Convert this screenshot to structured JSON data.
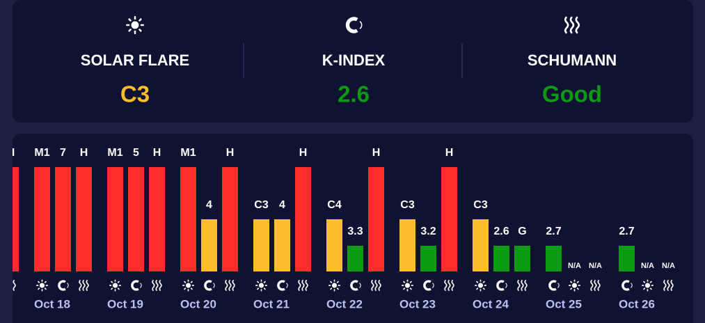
{
  "status": [
    {
      "title": "SOLAR FLARE",
      "value": "C3",
      "color": "#fbbd2b"
    },
    {
      "title": "K-INDEX",
      "value": "2.6",
      "color": "#0b9a12"
    },
    {
      "title": "SCHUMANN",
      "value": "Good",
      "color": "#0b9a12"
    }
  ],
  "palette": [
    "#0b9a12",
    "#fbbd2b",
    "#ff2d2d"
  ],
  "days": [
    {
      "bars": [
        {
          "label": "H",
          "color": "#ff2d2d"
        }
      ]
    },
    {
      "date": "Oct 18",
      "bars": [
        {
          "label": "M1",
          "color": "#ff2d2d"
        },
        {
          "label": "7",
          "color": "#ff2d2d"
        },
        {
          "label": "H",
          "color": "#ff2d2d"
        }
      ]
    },
    {
      "date": "Oct 19",
      "bars": [
        {
          "label": "M1",
          "color": "#ff2d2d"
        },
        {
          "label": "5",
          "color": "#ff2d2d"
        },
        {
          "label": "H",
          "color": "#ff2d2d"
        }
      ]
    },
    {
      "date": "Oct 20",
      "bars": [
        {
          "label": "M1",
          "color": "#ff2d2d"
        },
        {
          "label": "4",
          "color": "#fbbd2b"
        },
        {
          "label": "H",
          "color": "#ff2d2d"
        }
      ]
    },
    {
      "date": "Oct 21",
      "bars": [
        {
          "label": "C3",
          "color": "#fbbd2b"
        },
        {
          "label": "4",
          "color": "#fbbd2b"
        },
        {
          "label": "H",
          "color": "#ff2d2d"
        }
      ]
    },
    {
      "date": "Oct 22",
      "bars": [
        {
          "label": "C4",
          "color": "#fbbd2b"
        },
        {
          "label": "3.3",
          "color": "#0b9a12"
        },
        {
          "label": "H",
          "color": "#ff2d2d"
        }
      ]
    },
    {
      "date": "Oct 23",
      "bars": [
        {
          "label": "C3",
          "color": "#fbbd2b"
        },
        {
          "label": "3.2",
          "color": "#0b9a12"
        },
        {
          "label": "H",
          "color": "#ff2d2d"
        }
      ]
    },
    {
      "date": "Oct 24",
      "bars": [
        {
          "label": "C3",
          "color": "#fbbd2b"
        },
        {
          "label": "2.6",
          "color": "#0b9a12"
        },
        {
          "label": "G",
          "color": "#0b9a12"
        }
      ]
    },
    {
      "date": "Oct 25",
      "bars": [
        {
          "label": "2.7",
          "color": "#0b9a12"
        },
        {
          "label": "N/A"
        },
        {
          "label": "N/A"
        }
      ]
    },
    {
      "date": "Oct 26",
      "bars": [
        {
          "label": "2.7",
          "color": "#0b9a12"
        },
        {
          "label": "N/A"
        },
        {
          "label": "N/A"
        }
      ]
    }
  ]
}
